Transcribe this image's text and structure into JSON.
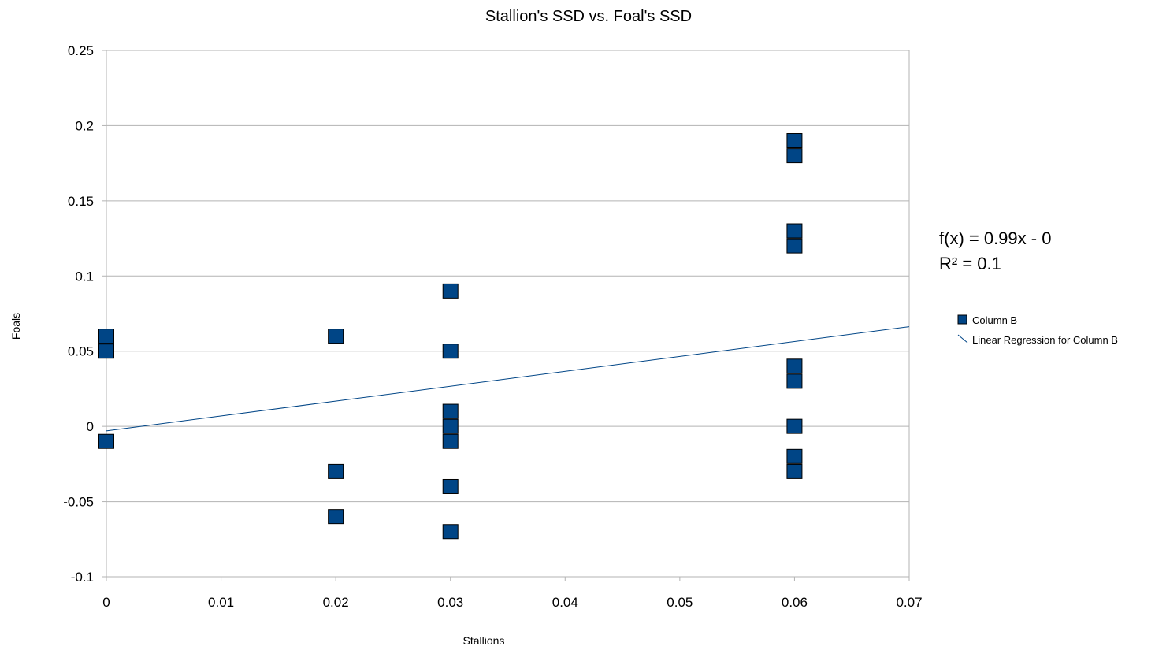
{
  "chart_data": {
    "type": "scatter",
    "title": "Stallion's SSD vs. Foal's SSD",
    "xlabel": "Stallions",
    "ylabel": "Foals",
    "xlim": [
      0,
      0.07
    ],
    "ylim": [
      -0.1,
      0.25
    ],
    "x_ticks": [
      0,
      0.01,
      0.02,
      0.03,
      0.04,
      0.05,
      0.06,
      0.07
    ],
    "x_tick_labels": [
      "0",
      "0.01",
      "0.02",
      "0.03",
      "0.04",
      "0.05",
      "0.06",
      "0.07"
    ],
    "y_ticks": [
      -0.1,
      -0.05,
      0,
      0.05,
      0.1,
      0.15,
      0.2,
      0.25
    ],
    "y_tick_labels": [
      "-0.1",
      "-0.05",
      "0",
      "0.05",
      "0.1",
      "0.15",
      "0.2",
      "0.25"
    ],
    "grid": "horizontal",
    "legend_position": "right",
    "series": [
      {
        "name": "Column B",
        "color": "#004586",
        "marker": "square",
        "points": [
          {
            "x": 0,
            "y": 0.06
          },
          {
            "x": 0,
            "y": 0.05
          },
          {
            "x": 0,
            "y": -0.01
          },
          {
            "x": 0.02,
            "y": 0.06
          },
          {
            "x": 0.02,
            "y": -0.03
          },
          {
            "x": 0.02,
            "y": -0.06
          },
          {
            "x": 0.03,
            "y": 0.09
          },
          {
            "x": 0.03,
            "y": 0.05
          },
          {
            "x": 0.03,
            "y": 0.01
          },
          {
            "x": 0.03,
            "y": 0.0
          },
          {
            "x": 0.03,
            "y": -0.01
          },
          {
            "x": 0.03,
            "y": -0.04
          },
          {
            "x": 0.03,
            "y": -0.07
          },
          {
            "x": 0.06,
            "y": 0.19
          },
          {
            "x": 0.06,
            "y": 0.18
          },
          {
            "x": 0.06,
            "y": 0.13
          },
          {
            "x": 0.06,
            "y": 0.12
          },
          {
            "x": 0.06,
            "y": 0.04
          },
          {
            "x": 0.06,
            "y": 0.03
          },
          {
            "x": 0.06,
            "y": 0.0
          },
          {
            "x": 0.06,
            "y": -0.02
          },
          {
            "x": 0.06,
            "y": -0.03
          }
        ]
      }
    ],
    "trendline": {
      "name": "Linear Regression for Column B",
      "color": "#004586",
      "slope": 0.99,
      "intercept": -0.003,
      "equation": "f(x) = 0.99x - 0",
      "r_squared": "R² = 0.1"
    }
  }
}
